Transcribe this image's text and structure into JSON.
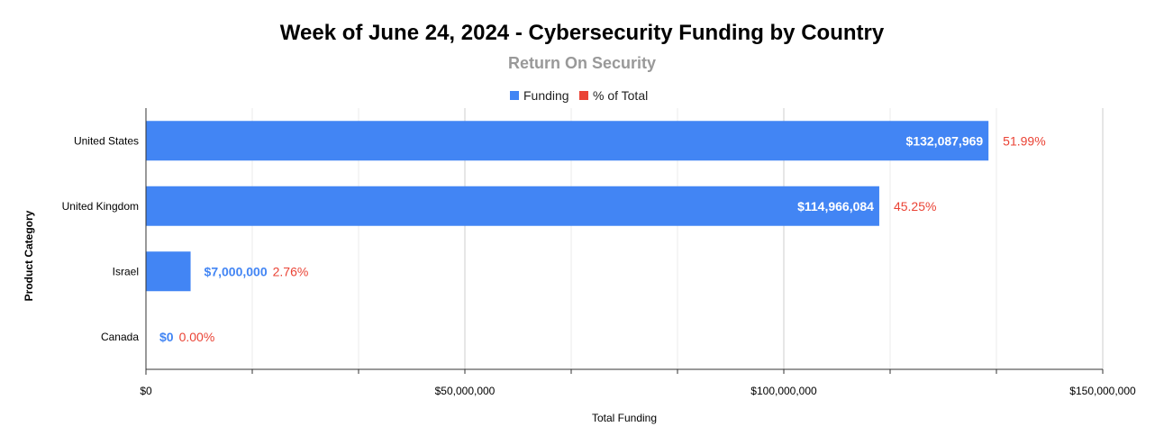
{
  "chart_data": {
    "type": "bar",
    "orientation": "horizontal",
    "title": "Week of June 24, 2024 - Cybersecurity Funding by Country",
    "subtitle": "Return On Security",
    "xlabel": "Total Funding",
    "ylabel": "Product Category",
    "categories": [
      "United States",
      "United Kingdom",
      "Israel",
      "Canada"
    ],
    "series": [
      {
        "name": "Funding",
        "color": "#4285F4",
        "values": [
          132087969,
          114966084,
          7000000,
          0
        ],
        "labels": [
          "$132,087,969",
          "$114,966,084",
          "$7,000,000",
          "$0"
        ]
      },
      {
        "name": "% of Total",
        "color": "#EA4335",
        "values": [
          51.99,
          45.25,
          2.76,
          0.0
        ],
        "labels": [
          "51.99%",
          "45.25%",
          "2.76%",
          "0.00%"
        ]
      }
    ],
    "xlim": [
      0,
      150000000
    ],
    "x_ticks": [
      0,
      50000000,
      100000000,
      150000000
    ],
    "x_tick_labels": [
      "$0",
      "$50,000,000",
      "$100,000,000",
      "$150,000,000"
    ],
    "grid": true,
    "legend_position": "top-center"
  }
}
